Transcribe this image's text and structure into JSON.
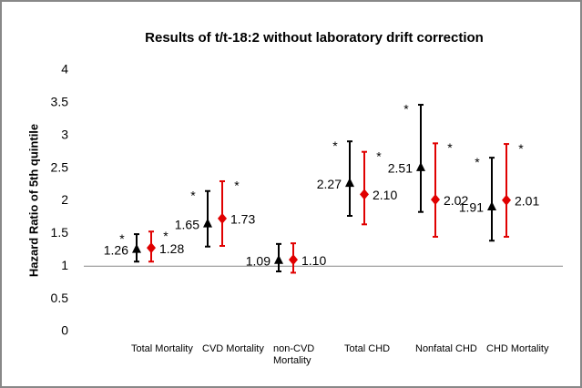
{
  "chart_data": {
    "type": "errorbar",
    "title": "Results of t/t-18:2 without laboratory drift correction",
    "y_label": "Hazard Ratio of 5th quintile",
    "categories": [
      "Total Mortality",
      "CVD Mortality",
      "non-CVD Mortality",
      "Total CHD",
      "Nonfatal CHD",
      "CHD Mortality"
    ],
    "ylim": [
      0,
      4
    ],
    "yticks": [
      0,
      0.5,
      1,
      1.5,
      2,
      2.5,
      3,
      3.5,
      4
    ],
    "reference_line": 1,
    "series": [
      {
        "color": "#000000",
        "marker": "triangle",
        "values": [
          1.26,
          1.65,
          1.09,
          2.27,
          2.51,
          1.91
        ],
        "value_labels": [
          "1.26",
          "1.65",
          "1.09",
          "2.27",
          "2.51",
          "1.91"
        ],
        "lower": [
          1.07,
          1.3,
          0.92,
          1.77,
          1.83,
          1.39
        ],
        "upper": [
          1.49,
          2.15,
          1.34,
          2.91,
          3.47,
          2.66
        ],
        "annotations": [
          "*",
          "*",
          null,
          "*",
          "*",
          "*"
        ]
      },
      {
        "color": "#e00000",
        "marker": "diamond",
        "values": [
          1.28,
          1.73,
          1.1,
          2.1,
          2.02,
          2.01
        ],
        "value_labels": [
          "1.28",
          "1.73",
          "1.10",
          "2.10",
          "2.02",
          "2.01"
        ],
        "lower": [
          1.07,
          1.31,
          0.9,
          1.64,
          1.45,
          1.45
        ],
        "upper": [
          1.53,
          2.3,
          1.35,
          2.75,
          2.88,
          2.87
        ],
        "annotations": [
          "*",
          "*",
          null,
          "*",
          "*",
          "*"
        ]
      }
    ]
  }
}
